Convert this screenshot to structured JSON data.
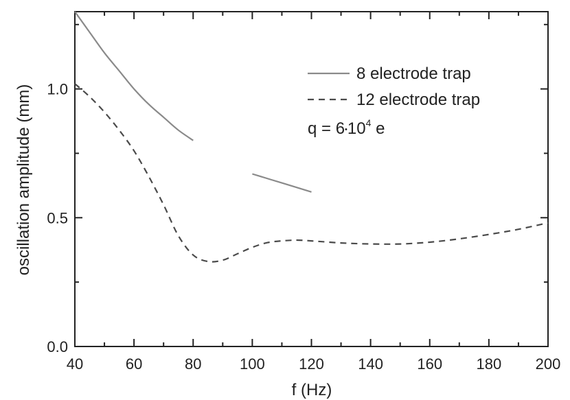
{
  "chart_data": {
    "type": "line",
    "title": "",
    "xlabel": "f (Hz)",
    "ylabel": "oscillation amplitude (mm)",
    "xlim": [
      40,
      200
    ],
    "ylim": [
      0.0,
      1.3
    ],
    "x_ticks": [
      "40",
      "60",
      "80",
      "100",
      "120",
      "140",
      "160",
      "180",
      "200"
    ],
    "y_ticks": [
      "0.0",
      "0.5",
      "1.0"
    ],
    "grid": false,
    "legend_position": "top-right",
    "annotation": {
      "prefix": "q = 6",
      "dot": "•",
      "base": "10",
      "exponent": "4",
      "suffix": " e"
    },
    "series": [
      {
        "name": "8 electrode trap",
        "style": "solid",
        "color": "#8a8a8a",
        "segments": [
          [
            [
              40,
              1.3
            ],
            [
              45,
              1.22
            ],
            [
              50,
              1.14
            ],
            [
              55,
              1.07
            ],
            [
              60,
              1.0
            ],
            [
              65,
              0.94
            ],
            [
              70,
              0.89
            ],
            [
              75,
              0.84
            ],
            [
              80,
              0.8
            ]
          ],
          [
            [
              100,
              0.67
            ],
            [
              110,
              0.635
            ],
            [
              120,
              0.6
            ]
          ]
        ]
      },
      {
        "name": "12 electrode trap",
        "style": "dashed",
        "color": "#4a4a4a",
        "segments": [
          [
            [
              40,
              1.02
            ],
            [
              45,
              0.97
            ],
            [
              50,
              0.91
            ],
            [
              55,
              0.84
            ],
            [
              60,
              0.76
            ],
            [
              65,
              0.66
            ],
            [
              70,
              0.55
            ],
            [
              75,
              0.43
            ],
            [
              80,
              0.355
            ],
            [
              85,
              0.33
            ],
            [
              90,
              0.335
            ],
            [
              95,
              0.36
            ],
            [
              100,
              0.385
            ],
            [
              105,
              0.403
            ],
            [
              110,
              0.41
            ],
            [
              115,
              0.413
            ],
            [
              120,
              0.41
            ],
            [
              130,
              0.402
            ],
            [
              140,
              0.398
            ],
            [
              150,
              0.398
            ],
            [
              160,
              0.405
            ],
            [
              170,
              0.418
            ],
            [
              180,
              0.435
            ],
            [
              190,
              0.455
            ],
            [
              200,
              0.48
            ]
          ]
        ]
      }
    ]
  }
}
